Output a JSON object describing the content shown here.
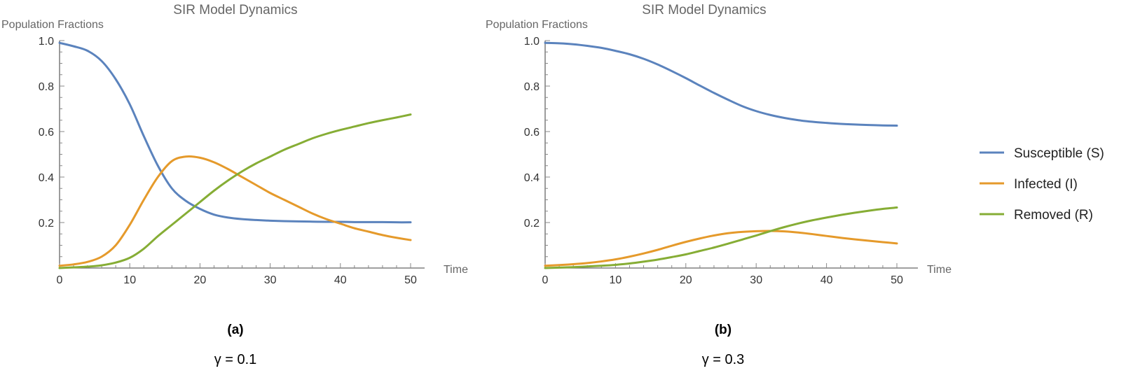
{
  "chart_data": [
    {
      "id": "a",
      "type": "line",
      "title": "SIR Model Dynamics",
      "ylabel": "Population Fractions",
      "xlabel": "Time",
      "caption_letter": "(a)",
      "caption_param": "γ = 0.1",
      "xlim": [
        0,
        50
      ],
      "ylim": [
        0,
        1.0
      ],
      "xticks": [
        0,
        10,
        20,
        30,
        40,
        50
      ],
      "yticks": [
        0.2,
        0.4,
        0.6,
        0.8,
        1.0
      ],
      "x": [
        0,
        2,
        4,
        6,
        8,
        10,
        12,
        14,
        16,
        18,
        20,
        22,
        24,
        26,
        28,
        30,
        32,
        34,
        36,
        38,
        40,
        42,
        44,
        46,
        48,
        50
      ],
      "series": [
        {
          "name": "Susceptible (S)",
          "color": "#5b83bd",
          "values": [
            0.99,
            0.975,
            0.955,
            0.91,
            0.83,
            0.72,
            0.58,
            0.45,
            0.35,
            0.295,
            0.26,
            0.235,
            0.222,
            0.215,
            0.211,
            0.208,
            0.206,
            0.205,
            0.204,
            0.203,
            0.203,
            0.202,
            0.202,
            0.202,
            0.201,
            0.201
          ]
        },
        {
          "name": "Infected (I)",
          "color": "#e59a2b",
          "values": [
            0.01,
            0.016,
            0.027,
            0.05,
            0.1,
            0.19,
            0.3,
            0.4,
            0.47,
            0.49,
            0.485,
            0.465,
            0.435,
            0.4,
            0.365,
            0.33,
            0.3,
            0.27,
            0.24,
            0.215,
            0.195,
            0.175,
            0.16,
            0.145,
            0.133,
            0.123
          ]
        },
        {
          "name": "Removed (R)",
          "color": "#86ad35",
          "values": [
            0.0,
            0.003,
            0.006,
            0.012,
            0.024,
            0.045,
            0.085,
            0.14,
            0.19,
            0.24,
            0.29,
            0.34,
            0.385,
            0.425,
            0.46,
            0.49,
            0.52,
            0.545,
            0.57,
            0.59,
            0.607,
            0.622,
            0.637,
            0.65,
            0.662,
            0.675
          ]
        }
      ]
    },
    {
      "id": "b",
      "type": "line",
      "title": "SIR Model Dynamics",
      "ylabel": "Population Fractions",
      "xlabel": "Time",
      "caption_letter": "(b)",
      "caption_param": "γ = 0.3",
      "xlim": [
        0,
        50
      ],
      "ylim": [
        0,
        1.0
      ],
      "xticks": [
        0,
        10,
        20,
        30,
        40,
        50
      ],
      "yticks": [
        0.2,
        0.4,
        0.6,
        0.8,
        1.0
      ],
      "x": [
        0,
        2,
        4,
        6,
        8,
        10,
        12,
        14,
        16,
        18,
        20,
        22,
        24,
        26,
        28,
        30,
        32,
        34,
        36,
        38,
        40,
        42,
        44,
        46,
        48,
        50
      ],
      "series": [
        {
          "name": "Susceptible (S)",
          "color": "#5b83bd",
          "values": [
            0.99,
            0.988,
            0.984,
            0.977,
            0.968,
            0.955,
            0.94,
            0.92,
            0.895,
            0.866,
            0.835,
            0.802,
            0.77,
            0.74,
            0.712,
            0.69,
            0.673,
            0.66,
            0.65,
            0.643,
            0.638,
            0.634,
            0.631,
            0.629,
            0.627,
            0.626
          ]
        },
        {
          "name": "Infected (I)",
          "color": "#e59a2b",
          "values": [
            0.01,
            0.013,
            0.017,
            0.022,
            0.029,
            0.038,
            0.05,
            0.064,
            0.08,
            0.098,
            0.115,
            0.13,
            0.143,
            0.153,
            0.159,
            0.162,
            0.163,
            0.161,
            0.156,
            0.149,
            0.141,
            0.133,
            0.126,
            0.12,
            0.114,
            0.108
          ]
        },
        {
          "name": "Removed (R)",
          "color": "#86ad35",
          "values": [
            0.0,
            0.002,
            0.004,
            0.007,
            0.01,
            0.014,
            0.02,
            0.028,
            0.037,
            0.048,
            0.06,
            0.075,
            0.09,
            0.107,
            0.125,
            0.143,
            0.162,
            0.18,
            0.196,
            0.21,
            0.222,
            0.233,
            0.243,
            0.252,
            0.26,
            0.266
          ]
        }
      ]
    }
  ],
  "legend": {
    "items": [
      {
        "label": "Susceptible (S)",
        "color": "#5b83bd"
      },
      {
        "label": "Infected (I)",
        "color": "#e59a2b"
      },
      {
        "label": "Removed (R)",
        "color": "#86ad35"
      }
    ]
  }
}
